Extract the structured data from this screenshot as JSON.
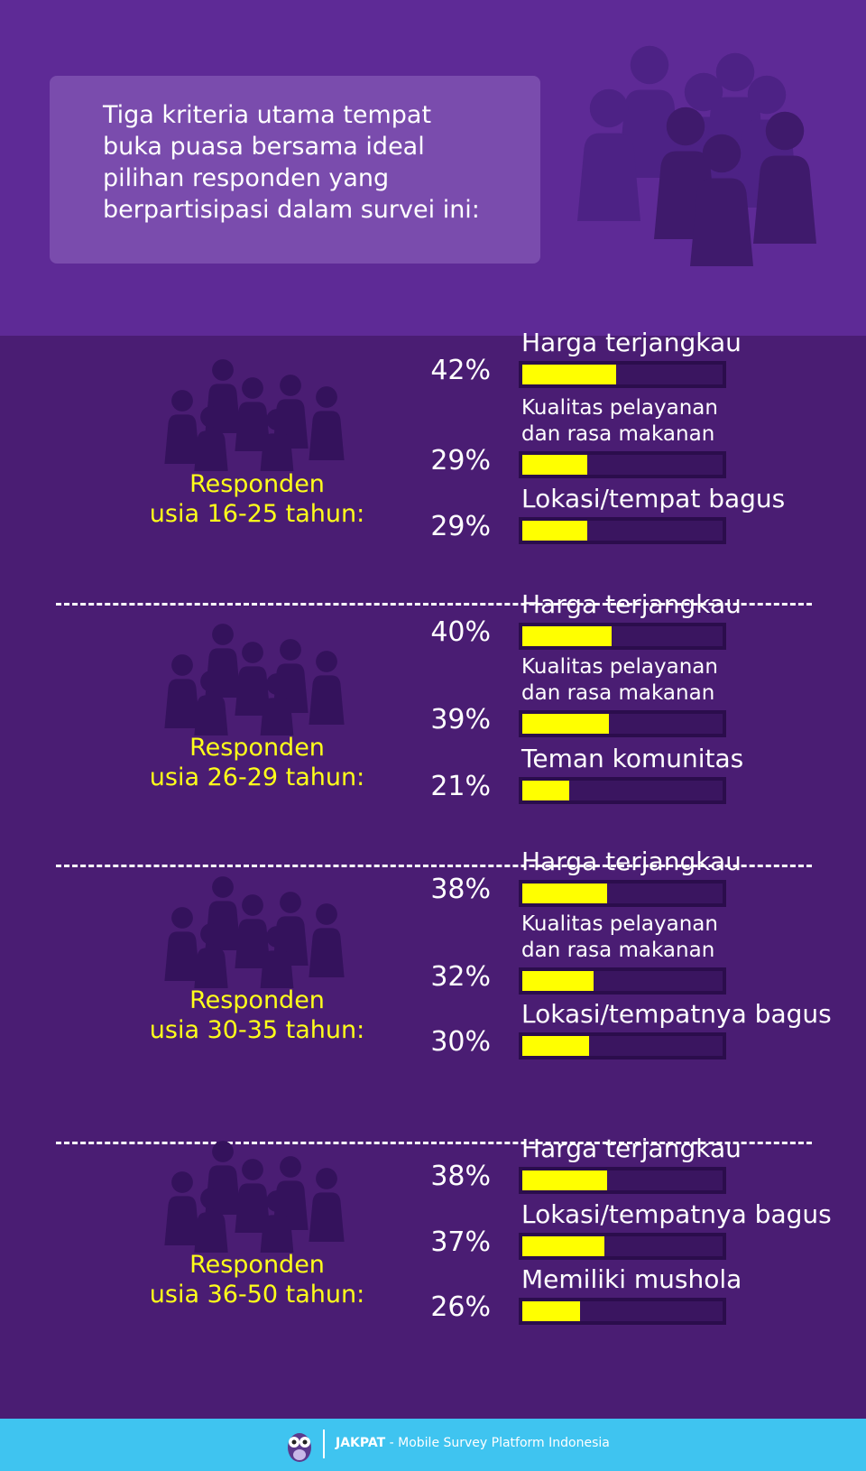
{
  "header": {
    "title": "Tiga kriteria utama tempat\nbuka puasa bersama ideal\npilihan responden yang\nberpartisipasi dalam survei ini:"
  },
  "chart_data": [
    {
      "type": "bar",
      "title": "Responden\nusia 16-25 tahun:",
      "categories": [
        "Harga terjangkau",
        "Kualitas pelayanan\ndan rasa makanan",
        "Lokasi/tempat bagus"
      ],
      "values": [
        42,
        29,
        29
      ],
      "value_labels": [
        "42%",
        "29%",
        "29%"
      ],
      "color": "#ffff00",
      "xlim": [
        0,
        90
      ]
    },
    {
      "type": "bar",
      "title": "Responden\nusia 26-29 tahun:",
      "categories": [
        "Harga terjangkau",
        "Kualitas pelayanan\ndan rasa makanan",
        "Teman komunitas"
      ],
      "values": [
        40,
        39,
        21
      ],
      "value_labels": [
        "40%",
        "39%",
        "21%"
      ],
      "color": "#ffff00",
      "xlim": [
        0,
        90
      ]
    },
    {
      "type": "bar",
      "title": "Responden\nusia 30-35 tahun:",
      "categories": [
        "Harga terjangkau",
        "Kualitas pelayanan\ndan rasa makanan",
        "Lokasi/tempatnya bagus"
      ],
      "values": [
        38,
        32,
        30
      ],
      "value_labels": [
        "38%",
        "32%",
        "30%"
      ],
      "color": "#ffff00",
      "xlim": [
        0,
        90
      ]
    },
    {
      "type": "bar",
      "title": "Responden\nusia 36-50 tahun:",
      "categories": [
        "Harga terjangkau",
        "Lokasi/tempatnya bagus",
        "Memiliki mushola"
      ],
      "values": [
        38,
        37,
        26
      ],
      "value_labels": [
        "38%",
        "37%",
        "26%"
      ],
      "color": "#ffff00",
      "xlim": [
        0,
        90
      ]
    }
  ],
  "footer": {
    "brand": "JAKPAT",
    "text": "- Mobile Survey Platform Indonesia"
  }
}
